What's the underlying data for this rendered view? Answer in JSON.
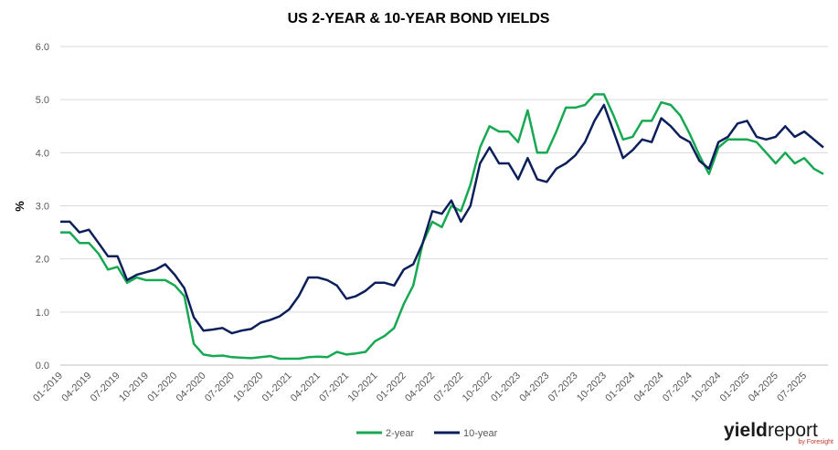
{
  "chart_data": {
    "type": "line",
    "title": "US 2-YEAR & 10-YEAR BOND YIELDS",
    "y_label": "%",
    "categories": [
      "01-2019",
      null,
      null,
      "04-2019",
      null,
      null,
      "07-2019",
      null,
      null,
      "10-2019",
      null,
      null,
      "01-2020",
      null,
      null,
      "04-2020",
      null,
      null,
      "07-2020",
      null,
      null,
      "10-2020",
      null,
      null,
      "01-2021",
      null,
      null,
      "04-2021",
      null,
      null,
      "07-2021",
      null,
      null,
      "10-2021",
      null,
      null,
      "01-2022",
      null,
      null,
      "04-2022",
      null,
      null,
      "07-2022",
      null,
      null,
      "10-2022",
      null,
      null,
      "01-2023",
      null,
      null,
      "04-2023",
      null,
      null,
      "07-2023",
      null,
      null,
      "10-2023",
      null,
      null,
      "01-2024",
      null,
      null,
      "04-2024",
      null,
      null,
      "07-2024",
      null,
      null,
      "10-2024",
      null,
      null,
      "01-2025",
      null,
      null,
      "04-2025",
      null,
      null,
      "07-2025",
      null,
      null
    ],
    "series": [
      {
        "name": "2-year",
        "color": "#17a852",
        "values": [
          2.5,
          2.5,
          2.3,
          2.3,
          2.1,
          1.8,
          1.85,
          1.55,
          1.65,
          1.6,
          1.6,
          1.6,
          1.5,
          1.3,
          0.4,
          0.2,
          0.17,
          0.18,
          0.15,
          0.14,
          0.13,
          0.15,
          0.17,
          0.12,
          0.12,
          0.12,
          0.15,
          0.16,
          0.15,
          0.25,
          0.2,
          0.22,
          0.25,
          0.45,
          0.55,
          0.7,
          1.15,
          1.5,
          2.3,
          2.7,
          2.6,
          3.0,
          2.9,
          3.4,
          4.1,
          4.5,
          4.4,
          4.4,
          4.2,
          4.8,
          4.0,
          4.0,
          4.4,
          4.85,
          4.85,
          4.9,
          5.1,
          5.1,
          4.7,
          4.25,
          4.3,
          4.6,
          4.6,
          4.95,
          4.9,
          4.7,
          4.35,
          3.95,
          3.6,
          4.1,
          4.25,
          4.25,
          4.25,
          4.2,
          4.0,
          3.8,
          4.0,
          3.8,
          3.9,
          3.7,
          3.6
        ]
      },
      {
        "name": "10-year",
        "color": "#0c1f5b",
        "values": [
          2.7,
          2.7,
          2.5,
          2.55,
          2.3,
          2.05,
          2.05,
          1.6,
          1.7,
          1.75,
          1.8,
          1.9,
          1.7,
          1.45,
          0.9,
          0.65,
          0.67,
          0.7,
          0.6,
          0.65,
          0.68,
          0.8,
          0.85,
          0.92,
          1.05,
          1.3,
          1.65,
          1.65,
          1.6,
          1.5,
          1.25,
          1.3,
          1.4,
          1.55,
          1.55,
          1.5,
          1.8,
          1.9,
          2.3,
          2.9,
          2.85,
          3.1,
          2.7,
          3.0,
          3.8,
          4.1,
          3.8,
          3.8,
          3.5,
          3.9,
          3.5,
          3.45,
          3.7,
          3.8,
          3.95,
          4.2,
          4.6,
          4.9,
          4.4,
          3.9,
          4.05,
          4.25,
          4.2,
          4.65,
          4.5,
          4.3,
          4.2,
          3.85,
          3.7,
          4.2,
          4.3,
          4.55,
          4.6,
          4.3,
          4.25,
          4.3,
          4.5,
          4.3,
          4.4,
          4.25,
          4.1
        ]
      }
    ],
    "ylim": [
      0,
      6
    ],
    "yticks": [
      {
        "value": 0,
        "label": "0.0"
      },
      {
        "value": 1,
        "label": "1.0"
      },
      {
        "value": 2,
        "label": "2.0"
      },
      {
        "value": 3,
        "label": "3.0"
      },
      {
        "value": 4,
        "label": "4.0"
      },
      {
        "value": 5,
        "label": "5.0"
      },
      {
        "value": 6,
        "label": "6.0"
      }
    ],
    "grid": true,
    "legend": "bottom"
  },
  "logo": {
    "word1": "yield",
    "word2": "report",
    "sub": "by Foresight"
  }
}
